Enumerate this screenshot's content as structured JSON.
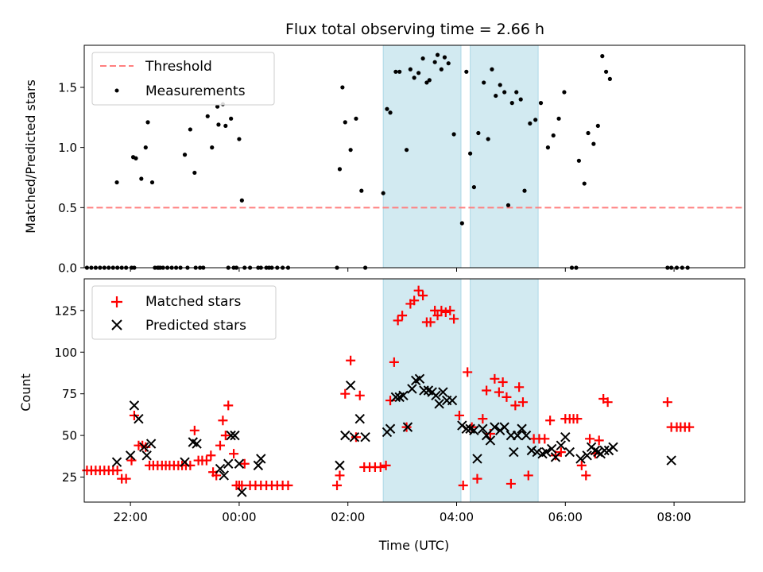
{
  "figure_title": "Flux total observing time = 2.66 h",
  "chart_data": [
    {
      "type": "scatter",
      "ylabel": "Matched/Predicted stars",
      "xlim": [
        -2.85,
        9.3
      ],
      "ylim": [
        0,
        1.85
      ],
      "yticks": [
        0.0,
        0.5,
        1.0,
        1.5
      ],
      "ytick_labels": [
        "0.0",
        "0.5",
        "1.0",
        "1.5"
      ],
      "shaded_regions": [
        [
          2.65,
          4.08
        ],
        [
          4.25,
          5.5
        ]
      ],
      "shade_color": "#add8e6",
      "legend": {
        "position": "top-left",
        "entries": [
          {
            "label": "Threshold",
            "style": "dashed-line",
            "color": "#ff7f7f"
          },
          {
            "label": "Measurements",
            "style": "dot",
            "color": "#000000"
          }
        ]
      },
      "threshold": {
        "name": "Threshold",
        "y": 0.5,
        "x": [
          -2.8,
          9.3
        ],
        "color": "#ff7f7f"
      },
      "series": [
        {
          "name": "Measurements",
          "color": "#000000",
          "x": [
            -2.8,
            -2.72,
            -2.64,
            -2.56,
            -2.48,
            -2.4,
            -2.32,
            -2.24,
            -2.16,
            -2.08,
            -1.98,
            -1.93,
            -2.25,
            -1.95,
            -1.9,
            -1.8,
            -1.72,
            -1.68,
            -1.6,
            -1.55,
            -1.5,
            -1.48,
            -1.45,
            -1.4,
            -1.32,
            -1.24,
            -1.16,
            -1.08,
            -1.0,
            -0.95,
            -0.9,
            -0.82,
            -0.8,
            -0.72,
            -0.66,
            -0.58,
            -0.5,
            -0.4,
            -0.38,
            -0.3,
            -0.25,
            -0.2,
            -0.15,
            -0.1,
            -0.05,
            0.0,
            0.05,
            0.1,
            0.2,
            0.35,
            0.4,
            0.5,
            0.55,
            0.6,
            0.7,
            0.8,
            0.9,
            1.8,
            1.85,
            1.9,
            1.95,
            2.05,
            2.15,
            2.25,
            2.32,
            2.65,
            2.72,
            2.78,
            2.88,
            2.95,
            3.08,
            3.15,
            3.22,
            3.3,
            3.38,
            3.45,
            3.5,
            3.6,
            3.65,
            3.72,
            3.78,
            3.85,
            3.95,
            4.1,
            4.18,
            4.25,
            4.32,
            4.4,
            4.5,
            4.58,
            4.65,
            4.72,
            4.8,
            4.88,
            4.95,
            5.02,
            5.1,
            5.18,
            5.25,
            5.35,
            5.45,
            5.55,
            5.68,
            5.78,
            5.88,
            5.98,
            6.12,
            6.2,
            6.25,
            6.35,
            6.42,
            6.52,
            6.6,
            6.68,
            6.75,
            6.82,
            7.88,
            7.95,
            8.05,
            8.15,
            8.25
          ],
          "y": [
            0,
            0,
            0,
            0,
            0,
            0,
            0,
            0,
            0,
            0,
            0,
            0,
            0.71,
            0.92,
            0.91,
            0.74,
            1.0,
            1.21,
            0.71,
            0,
            0,
            0,
            0,
            0,
            0,
            0,
            0,
            0,
            0.94,
            0,
            1.15,
            0.79,
            0,
            0,
            0,
            1.26,
            1.0,
            1.34,
            1.19,
            1.36,
            1.18,
            0,
            1.24,
            0,
            0,
            1.07,
            0.56,
            0,
            0,
            0,
            0,
            0,
            0,
            0,
            0,
            0,
            0,
            0,
            0.82,
            1.5,
            1.21,
            0.98,
            1.24,
            0.64,
            0,
            0.62,
            1.32,
            1.29,
            1.63,
            1.63,
            0.98,
            1.65,
            1.58,
            1.62,
            1.74,
            1.54,
            1.56,
            1.71,
            1.77,
            1.65,
            1.75,
            1.7,
            1.11,
            0.37,
            1.63,
            0.95,
            0.67,
            1.12,
            1.54,
            1.07,
            1.65,
            1.43,
            1.52,
            1.46,
            0.52,
            1.37,
            1.46,
            1.4,
            0.64,
            1.2,
            1.23,
            1.37,
            1.0,
            1.1,
            1.24,
            1.46,
            0,
            0,
            0.89,
            0.7,
            1.12,
            1.03,
            1.18,
            1.76,
            1.63,
            1.57,
            0,
            0,
            0,
            0,
            0
          ]
        }
      ]
    },
    {
      "type": "scatter",
      "xlabel": "Time (UTC)",
      "ylabel": "Count",
      "xlim": [
        -2.85,
        9.3
      ],
      "ylim": [
        10,
        144
      ],
      "yticks": [
        25,
        50,
        75,
        100,
        125
      ],
      "ytick_labels": [
        "25",
        "50",
        "75",
        "100",
        "125"
      ],
      "xticks": [
        -2,
        0,
        2,
        4,
        6,
        8
      ],
      "xtick_labels": [
        "22:00",
        "00:00",
        "02:00",
        "04:00",
        "06:00",
        "08:00"
      ],
      "shaded_regions": [
        [
          2.65,
          4.08
        ],
        [
          4.25,
          5.5
        ]
      ],
      "shade_color": "#add8e6",
      "legend": {
        "position": "top-left",
        "entries": [
          {
            "label": "Matched stars",
            "style": "plus",
            "color": "#ff0000"
          },
          {
            "label": "Predicted stars",
            "style": "x",
            "color": "#000000"
          }
        ]
      },
      "series": [
        {
          "name": "Matched stars",
          "color": "#ff0000",
          "points": [
            [
              -2.8,
              29
            ],
            [
              -2.72,
              29
            ],
            [
              -2.64,
              29
            ],
            [
              -2.56,
              29
            ],
            [
              -2.48,
              29
            ],
            [
              -2.4,
              29
            ],
            [
              -2.32,
              29
            ],
            [
              -2.24,
              29
            ],
            [
              -2.16,
              24
            ],
            [
              -2.08,
              24
            ],
            [
              -1.98,
              35
            ],
            [
              -1.93,
              62
            ],
            [
              -1.85,
              44
            ],
            [
              -1.78,
              44
            ],
            [
              -1.72,
              43
            ],
            [
              -1.65,
              32
            ],
            [
              -1.58,
              32
            ],
            [
              -1.5,
              32
            ],
            [
              -1.42,
              32
            ],
            [
              -1.35,
              32
            ],
            [
              -1.28,
              32
            ],
            [
              -1.2,
              32
            ],
            [
              -1.12,
              32
            ],
            [
              -1.05,
              32
            ],
            [
              -0.98,
              32
            ],
            [
              -0.9,
              32
            ],
            [
              -0.82,
              53
            ],
            [
              -0.75,
              35
            ],
            [
              -0.68,
              35
            ],
            [
              -0.6,
              35
            ],
            [
              -0.52,
              38
            ],
            [
              -0.48,
              28
            ],
            [
              -0.42,
              26
            ],
            [
              -0.35,
              44
            ],
            [
              -0.3,
              59
            ],
            [
              -0.25,
              50
            ],
            [
              -0.2,
              68
            ],
            [
              -0.1,
              39
            ],
            [
              -0.05,
              20
            ],
            [
              0.0,
              20
            ],
            [
              0.05,
              20
            ],
            [
              0.1,
              33
            ],
            [
              0.2,
              20
            ],
            [
              0.3,
              20
            ],
            [
              0.4,
              20
            ],
            [
              0.5,
              20
            ],
            [
              0.6,
              20
            ],
            [
              0.7,
              20
            ],
            [
              0.8,
              20
            ],
            [
              0.9,
              20
            ],
            [
              1.8,
              20
            ],
            [
              1.85,
              26
            ],
            [
              1.95,
              75
            ],
            [
              2.05,
              95
            ],
            [
              2.15,
              49
            ],
            [
              2.22,
              74
            ],
            [
              2.3,
              31
            ],
            [
              2.4,
              31
            ],
            [
              2.5,
              31
            ],
            [
              2.6,
              31
            ],
            [
              2.7,
              32
            ],
            [
              2.78,
              71
            ],
            [
              2.85,
              94
            ],
            [
              2.92,
              119
            ],
            [
              3.0,
              122
            ],
            [
              3.08,
              55
            ],
            [
              3.15,
              129
            ],
            [
              3.22,
              131
            ],
            [
              3.3,
              137
            ],
            [
              3.38,
              134
            ],
            [
              3.45,
              118
            ],
            [
              3.52,
              118
            ],
            [
              3.6,
              125
            ],
            [
              3.65,
              122
            ],
            [
              3.72,
              125
            ],
            [
              3.8,
              124
            ],
            [
              3.88,
              125
            ],
            [
              3.95,
              120
            ],
            [
              4.05,
              62
            ],
            [
              4.12,
              20
            ],
            [
              4.2,
              88
            ],
            [
              4.28,
              55
            ],
            [
              4.38,
              24
            ],
            [
              4.48,
              60
            ],
            [
              4.55,
              77
            ],
            [
              4.62,
              51
            ],
            [
              4.7,
              84
            ],
            [
              4.78,
              76
            ],
            [
              4.85,
              82
            ],
            [
              4.92,
              73
            ],
            [
              5.0,
              21
            ],
            [
              5.08,
              68
            ],
            [
              5.15,
              79
            ],
            [
              5.22,
              70
            ],
            [
              5.32,
              26
            ],
            [
              5.42,
              48
            ],
            [
              5.52,
              48
            ],
            [
              5.62,
              48
            ],
            [
              5.72,
              59
            ],
            [
              5.82,
              38
            ],
            [
              5.92,
              40
            ],
            [
              6.0,
              60
            ],
            [
              6.08,
              60
            ],
            [
              6.15,
              60
            ],
            [
              6.22,
              60
            ],
            [
              6.3,
              32
            ],
            [
              6.38,
              26
            ],
            [
              6.45,
              48
            ],
            [
              6.55,
              39
            ],
            [
              6.62,
              47
            ],
            [
              6.7,
              72
            ],
            [
              6.78,
              70
            ],
            [
              7.88,
              70
            ],
            [
              7.95,
              55
            ],
            [
              8.05,
              55
            ],
            [
              8.12,
              55
            ],
            [
              8.2,
              55
            ],
            [
              8.28,
              55
            ]
          ]
        },
        {
          "name": "Predicted stars",
          "color": "#000000",
          "points": [
            [
              -2.25,
              34
            ],
            [
              -2.0,
              38
            ],
            [
              -1.93,
              68
            ],
            [
              -1.85,
              60
            ],
            [
              -1.75,
              43
            ],
            [
              -1.7,
              38
            ],
            [
              -1.62,
              45
            ],
            [
              -1.0,
              34
            ],
            [
              -0.85,
              46
            ],
            [
              -0.78,
              45
            ],
            [
              -0.35,
              30
            ],
            [
              -0.28,
              26
            ],
            [
              -0.2,
              33
            ],
            [
              -0.15,
              50
            ],
            [
              -0.08,
              50
            ],
            [
              0.0,
              33
            ],
            [
              0.05,
              16
            ],
            [
              0.35,
              32
            ],
            [
              0.4,
              36
            ],
            [
              1.85,
              32
            ],
            [
              1.95,
              50
            ],
            [
              2.05,
              80
            ],
            [
              2.12,
              49
            ],
            [
              2.22,
              60
            ],
            [
              2.32,
              49
            ],
            [
              2.72,
              52
            ],
            [
              2.78,
              54
            ],
            [
              2.88,
              73
            ],
            [
              2.95,
              73
            ],
            [
              3.02,
              74
            ],
            [
              3.1,
              55
            ],
            [
              3.18,
              78
            ],
            [
              3.25,
              83
            ],
            [
              3.32,
              84
            ],
            [
              3.4,
              77
            ],
            [
              3.48,
              77
            ],
            [
              3.55,
              76
            ],
            [
              3.62,
              74
            ],
            [
              3.68,
              69
            ],
            [
              3.75,
              76
            ],
            [
              3.82,
              71
            ],
            [
              3.92,
              71
            ],
            [
              4.1,
              56
            ],
            [
              4.18,
              54
            ],
            [
              4.25,
              54
            ],
            [
              4.32,
              53
            ],
            [
              4.38,
              36
            ],
            [
              4.48,
              54
            ],
            [
              4.55,
              50
            ],
            [
              4.62,
              47
            ],
            [
              4.7,
              55
            ],
            [
              4.8,
              53
            ],
            [
              4.88,
              55
            ],
            [
              5.0,
              50
            ],
            [
              5.05,
              40
            ],
            [
              5.12,
              50
            ],
            [
              5.2,
              54
            ],
            [
              5.28,
              50
            ],
            [
              5.38,
              41
            ],
            [
              5.48,
              40
            ],
            [
              5.58,
              39
            ],
            [
              5.65,
              40
            ],
            [
              5.75,
              42
            ],
            [
              5.82,
              37
            ],
            [
              5.92,
              44
            ],
            [
              6.0,
              49
            ],
            [
              6.08,
              40
            ],
            [
              6.28,
              36
            ],
            [
              6.4,
              38
            ],
            [
              6.48,
              43
            ],
            [
              6.55,
              41
            ],
            [
              6.6,
              40
            ],
            [
              6.65,
              39
            ],
            [
              6.72,
              41
            ],
            [
              6.8,
              41
            ],
            [
              6.88,
              43
            ],
            [
              7.95,
              35
            ]
          ]
        }
      ]
    }
  ]
}
